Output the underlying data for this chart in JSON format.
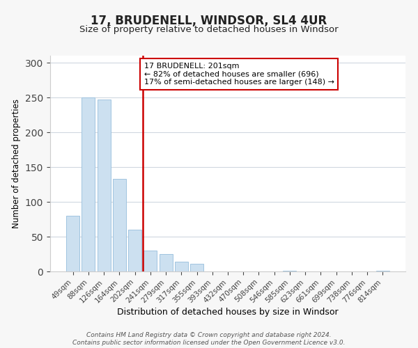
{
  "title": "17, BRUDENELL, WINDSOR, SL4 4UR",
  "subtitle": "Size of property relative to detached houses in Windsor",
  "xlabel": "Distribution of detached houses by size in Windsor",
  "ylabel": "Number of detached properties",
  "categories": [
    "49sqm",
    "88sqm",
    "126sqm",
    "164sqm",
    "202sqm",
    "241sqm",
    "279sqm",
    "317sqm",
    "355sqm",
    "393sqm",
    "432sqm",
    "470sqm",
    "508sqm",
    "546sqm",
    "585sqm",
    "623sqm",
    "661sqm",
    "699sqm",
    "738sqm",
    "776sqm",
    "814sqm"
  ],
  "values": [
    80,
    250,
    247,
    133,
    60,
    30,
    25,
    14,
    11,
    0,
    0,
    0,
    0,
    0,
    1,
    0,
    0,
    0,
    0,
    0,
    1
  ],
  "bar_color": "#cce0f0",
  "bar_edge_color": "#a0c4e0",
  "vline_x": 4.5,
  "vline_color": "#cc0000",
  "annotation_text": "17 BRUDENELL: 201sqm\n← 82% of detached houses are smaller (696)\n17% of semi-detached houses are larger (148) →",
  "annotation_box_color": "#ffffff",
  "annotation_box_edge": "#cc0000",
  "ylim": [
    0,
    310
  ],
  "yticks": [
    0,
    50,
    100,
    150,
    200,
    250,
    300
  ],
  "footnote": "Contains HM Land Registry data © Crown copyright and database right 2024.\nContains public sector information licensed under the Open Government Licence v3.0.",
  "background_color": "#f7f7f7",
  "plot_background": "#ffffff"
}
